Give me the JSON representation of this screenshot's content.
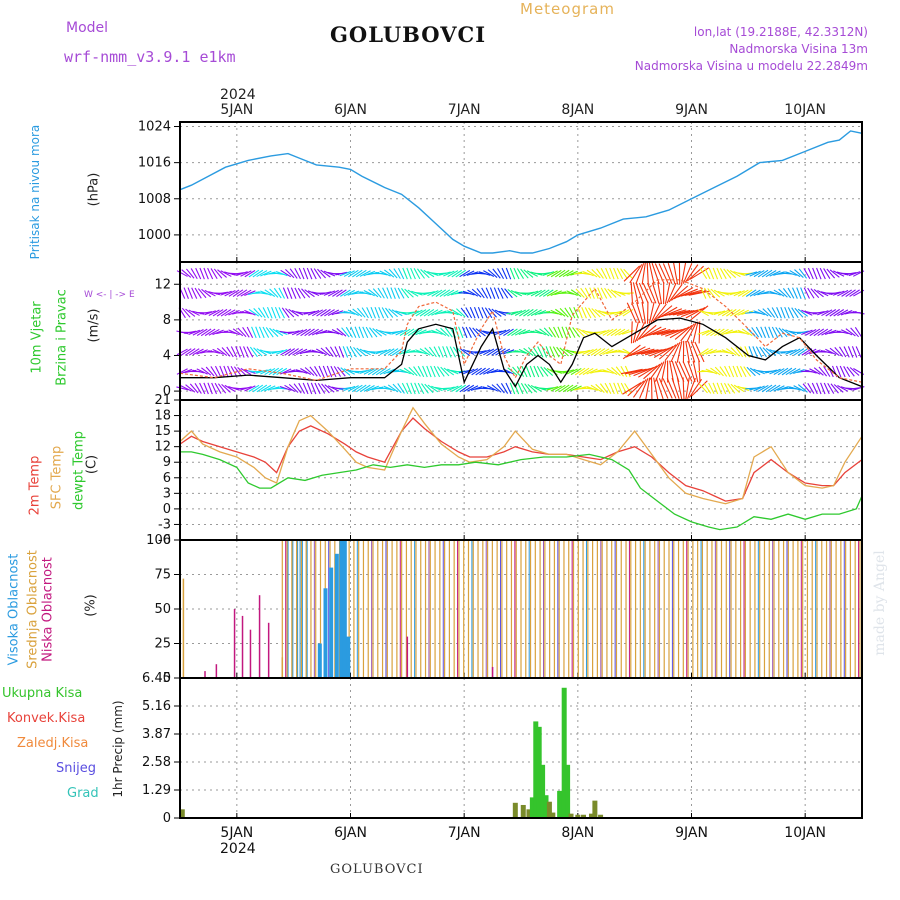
{
  "header": {
    "model_label": "Model",
    "model_name": "wrf-nmm_v3.9.1 e1km",
    "location": "GOLUBOVCI",
    "meteogram_label": "Meteogram",
    "lonlat": "lon,lat (19.2188E, 42.3312N)",
    "altitude": "Nadmorska Visina 13m",
    "model_altitude": "Nadmorska Visina u modelu 22.2849m"
  },
  "time_axis": {
    "year": "2024",
    "day_labels": [
      "5JAN",
      "6JAN",
      "7JAN",
      "8JAN",
      "9JAN",
      "10JAN"
    ]
  },
  "panel_labels": {
    "pressure": "Pritisak na nivou mora",
    "pressure_unit": "(hPa)",
    "wind_1": "10m Vjetar",
    "wind_2": "Brzina i Pravac",
    "wind_unit": "(m/s)",
    "compass": "W <- | -> E",
    "temp_2m": "2m Temp",
    "temp_sfc": "SFC Temp",
    "temp_dew": "dewpt Temp",
    "temp_unit": "(C)",
    "cloud_high": "Visoka Oblacnost",
    "cloud_mid": "Srednja Oblacnost",
    "cloud_low": "Niska Oblacnost",
    "cloud_unit": "(%)",
    "precip_total": "Ukupna Kisa",
    "precip_conv": "Konvek.Kisa",
    "precip_frz": "Zaledj.Kisa",
    "precip_snow": "Snijeg",
    "precip_grad": "Grad",
    "precip_unit": "1hr Precip (mm)"
  },
  "footer": {
    "location": "GOLUBOVCI",
    "watermark": "made by Angel"
  },
  "colors": {
    "pressure": "#2b9be0",
    "temp_2m": "#e8423a",
    "temp_sfc": "#e3a94f",
    "temp_dew": "#2ec92e",
    "cloud_high": "#2b9be0",
    "cloud_mid": "#d9a23d",
    "cloud_low": "#c2187f",
    "precip_total": "#35c42c",
    "precip_conv": "#e8423a",
    "precip_frz": "#f08a3c",
    "precip_snow": "#5a4ee0",
    "precip_grad": "#33c3b8",
    "wind_speed": "#000000",
    "wind_gust": "#f06a3c",
    "header_purple": "#a64bd6",
    "meteogram_gold": "#e6b35a"
  },
  "chart_data": [
    {
      "type": "line",
      "name": "pressure",
      "x_unit": "day of January 2024",
      "xlim": [
        4.5,
        10.5
      ],
      "ylim": [
        994,
        1025
      ],
      "yticks": [
        1000,
        1008,
        1016,
        1024
      ],
      "series": [
        {
          "x": [
            4.5,
            4.6,
            4.75,
            4.9,
            5.1,
            5.3,
            5.45,
            5.55,
            5.7,
            5.9,
            6.0,
            6.1,
            6.3,
            6.45,
            6.6,
            6.75,
            6.9,
            7.0,
            7.15,
            7.25,
            7.4,
            7.5,
            7.6,
            7.75,
            7.9,
            8.0,
            8.2,
            8.4,
            8.6,
            8.8,
            9.0,
            9.2,
            9.4,
            9.6,
            9.8,
            10.0,
            10.2,
            10.3,
            10.4,
            10.5
          ],
          "y": [
            1010,
            1011,
            1013,
            1015,
            1016.5,
            1017.5,
            1018,
            1017,
            1015.5,
            1015,
            1014.5,
            1013,
            1010.5,
            1009,
            1006,
            1002.5,
            999,
            997.5,
            996,
            996,
            996.5,
            996,
            996,
            997,
            998.5,
            1000,
            1001.5,
            1003.5,
            1004,
            1005.5,
            1008,
            1010.5,
            1013,
            1016,
            1016.5,
            1018.5,
            1020.5,
            1021,
            1023,
            1022.5
          ]
        }
      ]
    },
    {
      "type": "line",
      "name": "wind",
      "xlim": [
        4.5,
        10.5
      ],
      "ylim": [
        -1,
        14.5
      ],
      "yticks": [
        0,
        4,
        8,
        12
      ],
      "series": [
        {
          "name": "speed",
          "x": [
            4.5,
            4.8,
            5.1,
            5.4,
            5.7,
            6.0,
            6.3,
            6.45,
            6.5,
            6.6,
            6.75,
            6.9,
            7.0,
            7.15,
            7.25,
            7.35,
            7.45,
            7.55,
            7.65,
            7.75,
            7.85,
            7.95,
            8.05,
            8.15,
            8.3,
            8.5,
            8.7,
            8.9,
            9.1,
            9.3,
            9.5,
            9.65,
            9.8,
            9.95,
            10.1,
            10.3,
            10.5
          ],
          "y": [
            1.5,
            1.5,
            1.8,
            1.5,
            1.2,
            1.5,
            1.5,
            3,
            5.5,
            7,
            7.5,
            7,
            1,
            5,
            7,
            2.5,
            0.5,
            3,
            4,
            3,
            1,
            3,
            6,
            6.5,
            5,
            6.5,
            8,
            8.2,
            7.5,
            6,
            4,
            3.5,
            5,
            6,
            4,
            1.5,
            0.5
          ]
        },
        {
          "name": "gust",
          "x": [
            4.5,
            4.8,
            5.1,
            5.4,
            5.7,
            6.0,
            6.3,
            6.45,
            6.5,
            6.6,
            6.75,
            6.9,
            7.0,
            7.15,
            7.25,
            7.35,
            7.45,
            7.55,
            7.65,
            7.75,
            7.85,
            7.95,
            8.05,
            8.15,
            8.3,
            8.5,
            8.7,
            8.9,
            9.1,
            9.3,
            9.5,
            9.65,
            9.8,
            9.95,
            10.1,
            10.3,
            10.5
          ],
          "y": [
            2,
            1.5,
            2.5,
            2,
            1.2,
            2.5,
            2.5,
            4.5,
            7.5,
            9.5,
            10,
            9,
            3,
            7,
            9,
            4,
            1.5,
            4,
            5.5,
            4,
            3,
            8.5,
            10,
            11.5,
            8,
            10,
            12.5,
            12.5,
            11.5,
            9.5,
            7,
            5,
            6.5,
            6,
            3.5,
            1.5,
            1
          ]
        }
      ]
    },
    {
      "type": "line",
      "name": "temperature",
      "xlim": [
        4.5,
        10.5
      ],
      "ylim": [
        -6,
        21
      ],
      "yticks": [
        -6,
        -3,
        0,
        3,
        6,
        9,
        12,
        15,
        18,
        21
      ],
      "series": [
        {
          "name": "2m Temp",
          "x": [
            4.5,
            4.6,
            4.7,
            4.85,
            5.0,
            5.15,
            5.25,
            5.35,
            5.45,
            5.55,
            5.65,
            5.8,
            5.95,
            6.05,
            6.15,
            6.3,
            6.45,
            6.55,
            6.65,
            6.8,
            6.95,
            7.05,
            7.2,
            7.35,
            7.45,
            7.6,
            7.75,
            7.9,
            8.05,
            8.2,
            8.35,
            8.5,
            8.65,
            8.8,
            8.95,
            9.1,
            9.2,
            9.3,
            9.45,
            9.55,
            9.7,
            9.85,
            10.0,
            10.15,
            10.25,
            10.35,
            10.5
          ],
          "y": [
            12.5,
            14,
            13,
            12,
            11,
            10,
            9,
            7,
            12,
            15,
            16,
            14.5,
            12.5,
            11,
            10,
            9,
            15,
            17.5,
            15.5,
            13,
            11,
            10,
            10,
            11,
            12,
            11,
            10.5,
            10.5,
            10,
            9.5,
            11,
            12,
            10,
            7,
            4.5,
            3.5,
            2.5,
            1.5,
            2,
            7,
            9.5,
            7,
            5,
            4.5,
            4.5,
            7,
            9.5
          ]
        },
        {
          "name": "SFC Temp",
          "x": [
            4.5,
            4.6,
            4.7,
            4.85,
            5.0,
            5.15,
            5.25,
            5.35,
            5.45,
            5.55,
            5.65,
            5.8,
            5.95,
            6.05,
            6.15,
            6.3,
            6.45,
            6.55,
            6.65,
            6.8,
            6.95,
            7.05,
            7.2,
            7.35,
            7.45,
            7.6,
            7.75,
            7.9,
            8.05,
            8.2,
            8.35,
            8.5,
            8.65,
            8.8,
            8.95,
            9.1,
            9.2,
            9.3,
            9.45,
            9.55,
            9.7,
            9.85,
            10.0,
            10.15,
            10.25,
            10.35,
            10.5
          ],
          "y": [
            13,
            15,
            12.5,
            11,
            10,
            8,
            6,
            5,
            12,
            17,
            18,
            15,
            11.5,
            9,
            8,
            7.5,
            15,
            19.5,
            16.5,
            12.5,
            10,
            9,
            9.5,
            12,
            15,
            11.5,
            10.5,
            10.5,
            9.5,
            8.5,
            11,
            15,
            10.5,
            6,
            3,
            2,
            1.5,
            1,
            2,
            10,
            12,
            7,
            4.5,
            4,
            4.5,
            9,
            14
          ]
        },
        {
          "name": "dewpt Temp",
          "x": [
            4.5,
            4.6,
            4.7,
            4.85,
            5.0,
            5.1,
            5.2,
            5.3,
            5.45,
            5.6,
            5.75,
            5.9,
            6.05,
            6.2,
            6.35,
            6.5,
            6.65,
            6.8,
            6.95,
            7.1,
            7.3,
            7.5,
            7.7,
            7.9,
            8.1,
            8.3,
            8.45,
            8.55,
            8.7,
            8.85,
            9.0,
            9.15,
            9.25,
            9.4,
            9.55,
            9.7,
            9.85,
            10.0,
            10.15,
            10.3,
            10.45,
            10.5
          ],
          "y": [
            11,
            11,
            10.5,
            9.5,
            8,
            5,
            4,
            4,
            6,
            5.5,
            6.5,
            7,
            7.5,
            8.5,
            8,
            8.5,
            8,
            8.5,
            8.5,
            9,
            8.5,
            9.5,
            10,
            10,
            10.5,
            9.5,
            7.5,
            4,
            1.5,
            -1,
            -2.5,
            -3.5,
            -4,
            -3.5,
            -1.5,
            -2,
            -1,
            -2,
            -1,
            -1,
            0,
            2.5
          ]
        }
      ]
    },
    {
      "type": "bar",
      "name": "cloud_cover",
      "xlim": [
        4.5,
        10.5
      ],
      "ylim": [
        0,
        100
      ],
      "yticks": [
        0,
        25,
        50,
        75,
        100
      ],
      "series": [
        {
          "name": "Niska Oblacnost",
          "x": [
            4.72,
            4.82,
            4.98,
            5.05,
            5.12,
            5.2,
            5.28,
            6.5,
            7.25
          ],
          "values": [
            5,
            10,
            50,
            45,
            35,
            60,
            40,
            30,
            8
          ]
        },
        {
          "name": "Srednja Oblacnost",
          "x": [
            4.53,
            5.4
          ],
          "values": [
            72,
            15
          ]
        },
        {
          "name": "Visoka Oblacnost",
          "x": [
            5.73,
            5.78,
            5.83,
            5.88,
            5.92,
            5.95,
            5.98
          ],
          "values": [
            25,
            65,
            80,
            90,
            100,
            100,
            30
          ]
        }
      ],
      "blocks": [
        {
          "name": "Visoka Oblacnost",
          "x_start": 5.45,
          "x_end": 5.65,
          "value": 100
        },
        {
          "name": "Srednja Oblacnost",
          "x_start": 5.4,
          "x_end": 10.5,
          "value": 100
        }
      ]
    },
    {
      "type": "bar",
      "name": "precipitation",
      "xlim": [
        4.5,
        10.5
      ],
      "ylim": [
        0,
        6.45
      ],
      "yticks": [
        0,
        1.29,
        2.58,
        3.87,
        5.16,
        6.45
      ],
      "series": [
        {
          "name": "Ukupna Kisa",
          "x": [
            4.52,
            7.45,
            7.52,
            7.57,
            7.6,
            7.63,
            7.66,
            7.69,
            7.72,
            7.75,
            7.78,
            7.84,
            7.88,
            7.91,
            7.94,
            8.0,
            8.05,
            8.12,
            8.15,
            8.2
          ],
          "values": [
            0.4,
            0.7,
            0.6,
            0.4,
            0.95,
            4.45,
            4.2,
            2.45,
            1.05,
            0.75,
            0.25,
            1.25,
            6.0,
            2.45,
            0.2,
            0.15,
            0.15,
            0.2,
            0.8,
            0.15
          ]
        }
      ]
    }
  ]
}
